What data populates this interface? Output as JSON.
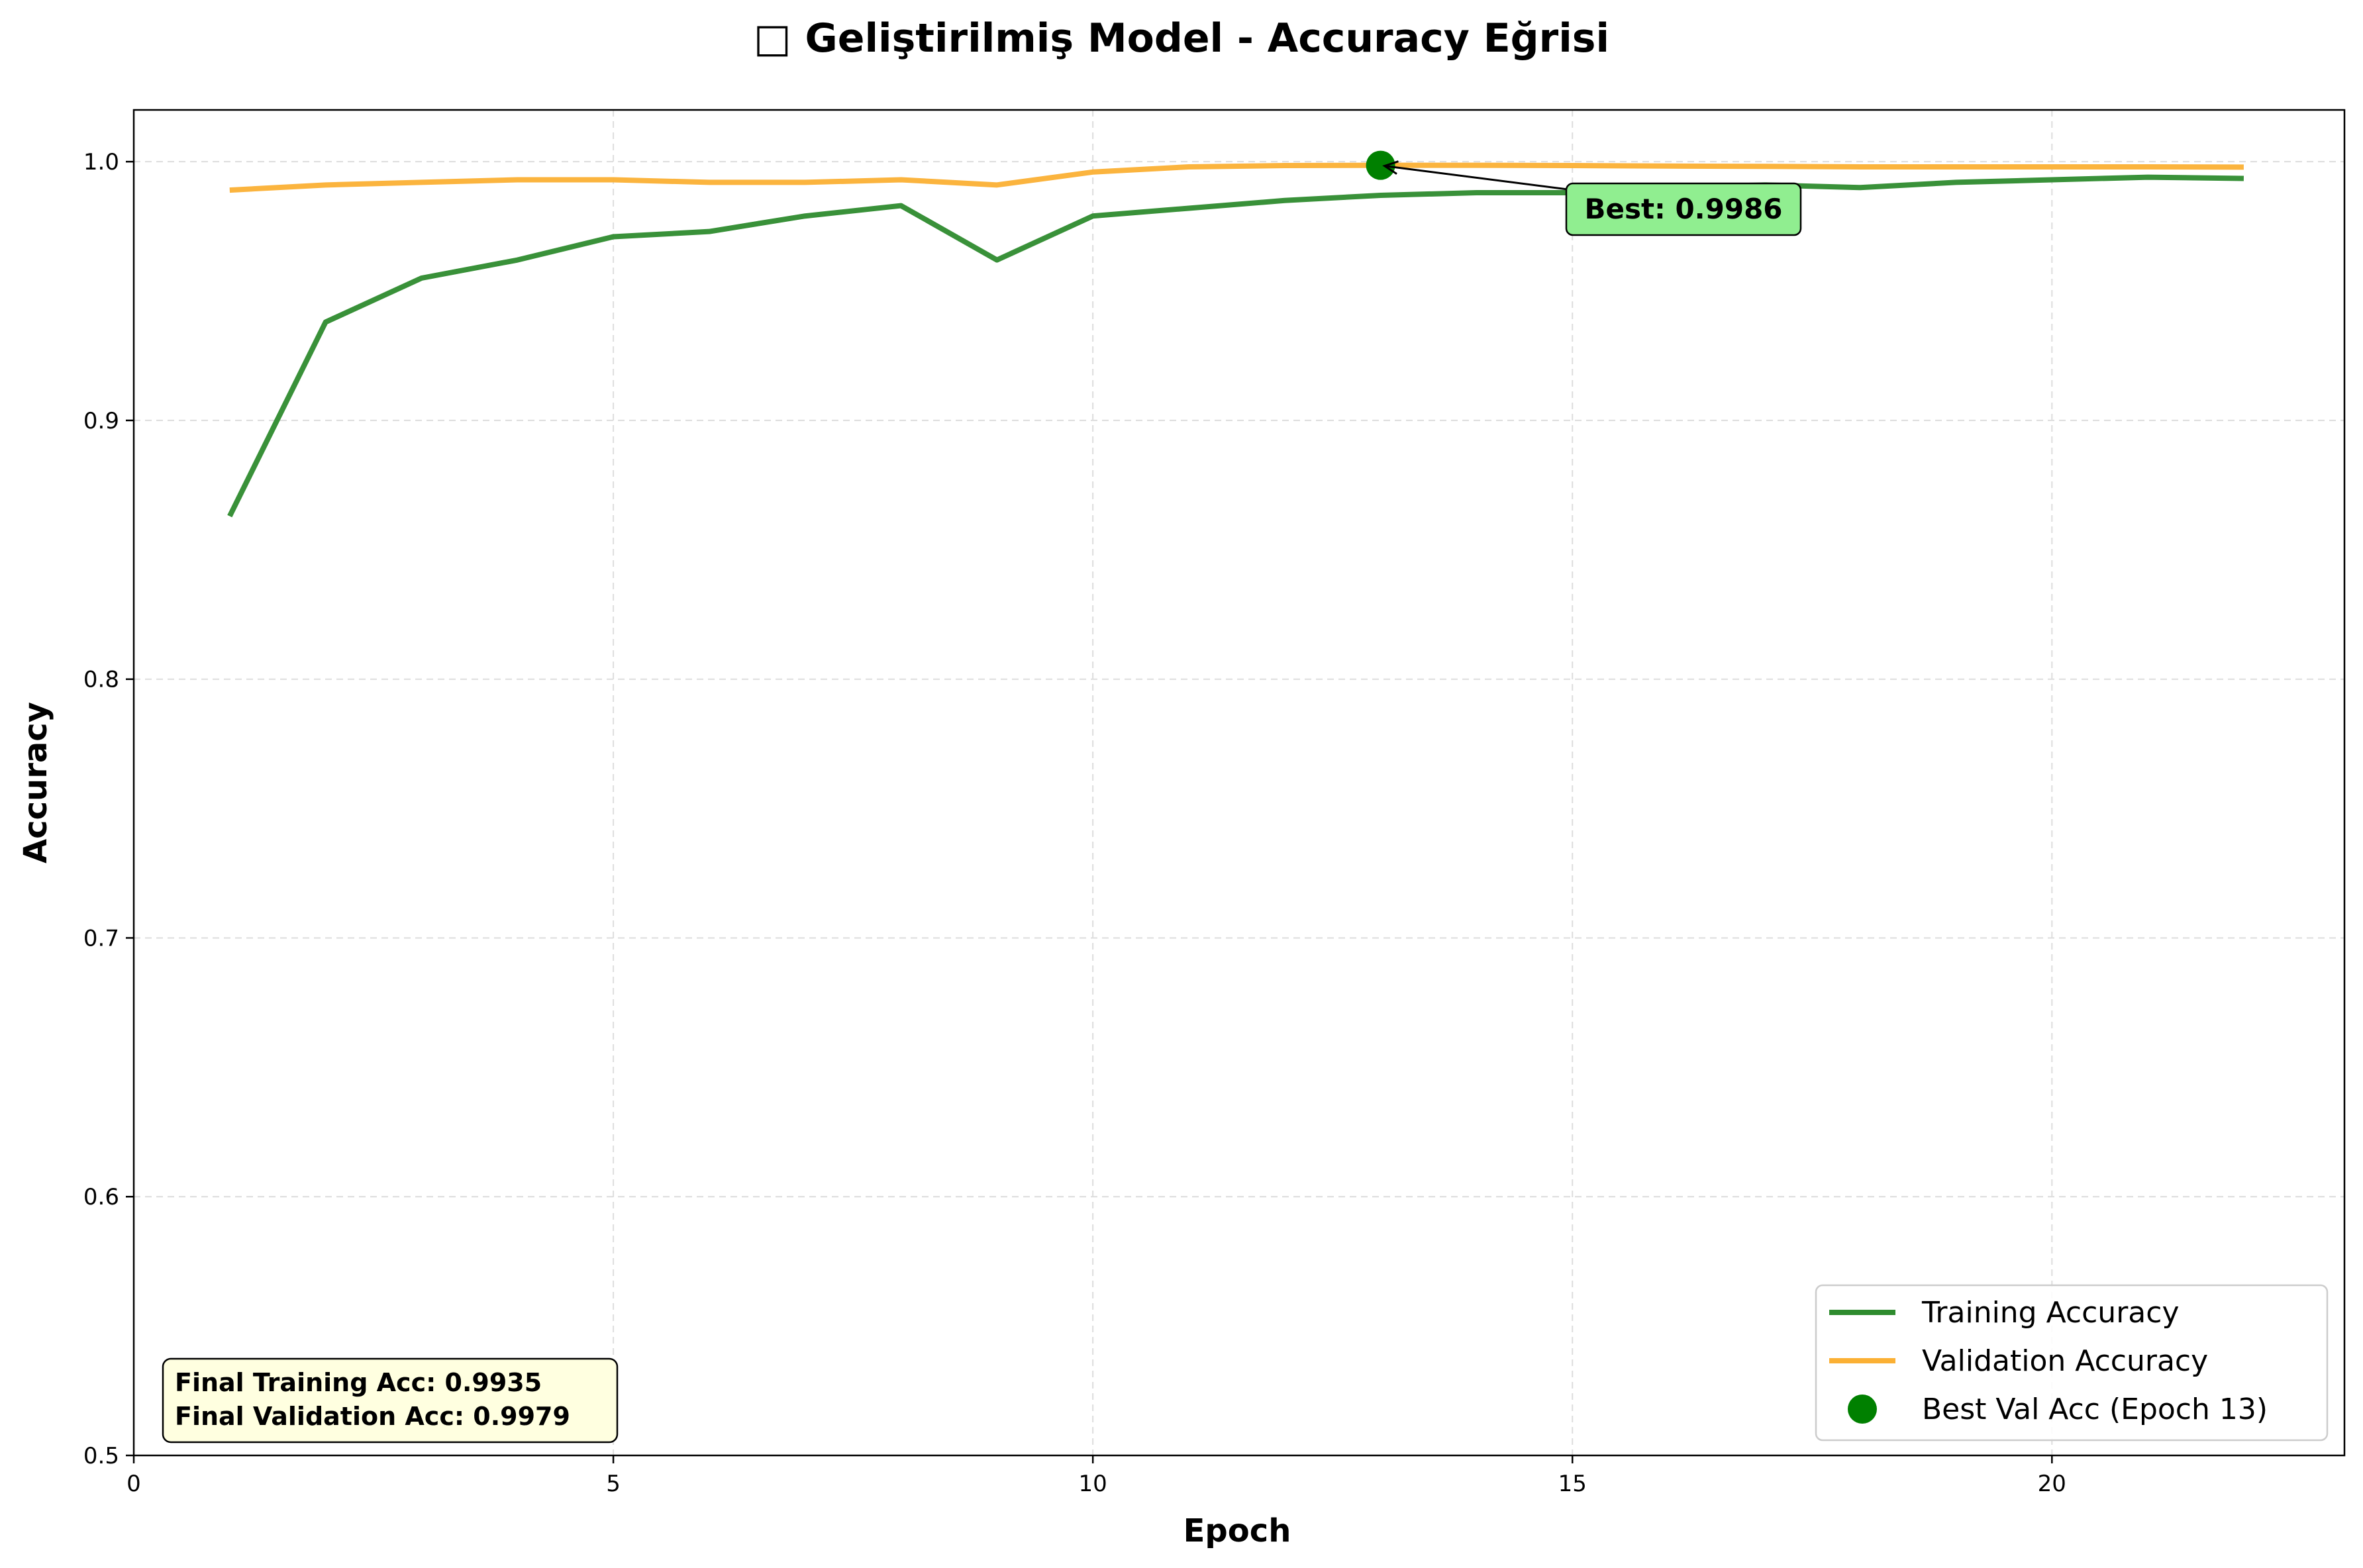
{
  "chart_data": {
    "type": "line",
    "title": "□ Geliştirilmiş Model - Accuracy Eğrisi",
    "xlabel": "Epoch",
    "ylabel": "Accuracy",
    "xlim": [
      0,
      23.05
    ],
    "ylim": [
      0.5,
      1.02
    ],
    "x_ticks": [
      0,
      5,
      10,
      15,
      20
    ],
    "y_ticks": [
      0.5,
      0.6,
      0.7,
      0.8,
      0.9,
      1.0
    ],
    "x_tick_labels": [
      "0",
      "5",
      "10",
      "15",
      "20"
    ],
    "y_tick_labels": [
      "0.5",
      "0.6",
      "0.7",
      "0.8",
      "0.9",
      "1.0"
    ],
    "grid": true,
    "legend_position": "bottom-right",
    "x": [
      1,
      2,
      3,
      4,
      5,
      6,
      7,
      8,
      9,
      10,
      11,
      12,
      13,
      14,
      15,
      16,
      17,
      18,
      19,
      20,
      21,
      22
    ],
    "series": [
      {
        "name": "Training Accuracy",
        "color": "#2e8b2e",
        "values": [
          0.863,
          0.938,
          0.955,
          0.962,
          0.971,
          0.973,
          0.979,
          0.983,
          0.962,
          0.979,
          0.982,
          0.985,
          0.987,
          0.988,
          0.988,
          0.99,
          0.991,
          0.99,
          0.992,
          0.993,
          0.994,
          0.9935
        ]
      },
      {
        "name": "Validation Accuracy",
        "color": "#fbb034",
        "values": [
          0.989,
          0.991,
          0.992,
          0.993,
          0.993,
          0.992,
          0.992,
          0.993,
          0.991,
          0.996,
          0.998,
          0.9985,
          0.9986,
          0.9986,
          0.9985,
          0.9983,
          0.9982,
          0.998,
          0.998,
          0.998,
          0.998,
          0.9979
        ]
      }
    ],
    "best_point": {
      "name": "Best Val Acc (Epoch 13)",
      "x": 13,
      "y": 0.9986,
      "color": "#008000",
      "label": "Best: 0.9986",
      "label_bg": "#90ee90"
    },
    "summary_box": {
      "lines": [
        "Final Training Acc: 0.9935",
        "Final Validation Acc: 0.9979"
      ],
      "bg": "#ffffe0"
    }
  }
}
